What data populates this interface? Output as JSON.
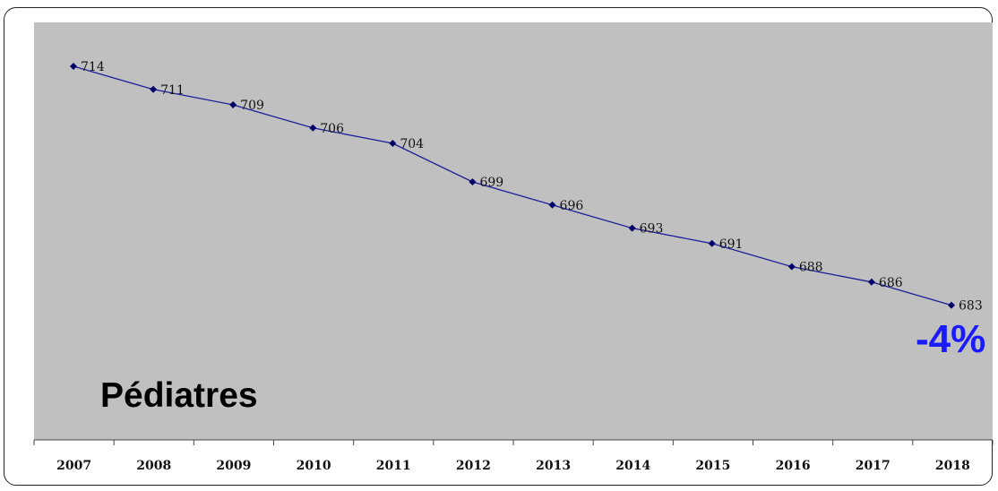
{
  "chart_data": {
    "type": "line",
    "title": "Pédiatres",
    "annotation": "-4%",
    "categories": [
      "2007",
      "2008",
      "2009",
      "2010",
      "2011",
      "2012",
      "2013",
      "2014",
      "2015",
      "2016",
      "2017",
      "2018"
    ],
    "values": [
      714,
      711,
      709,
      706,
      704,
      699,
      696,
      693,
      691,
      688,
      686,
      683
    ],
    "ylim": [
      678,
      718
    ],
    "grid": false,
    "legend": "none",
    "colors": {
      "plot_background": "#c0c0c0",
      "line": "#1f1f9a",
      "marker": "#000066",
      "annotation": "#1a1aff"
    }
  }
}
